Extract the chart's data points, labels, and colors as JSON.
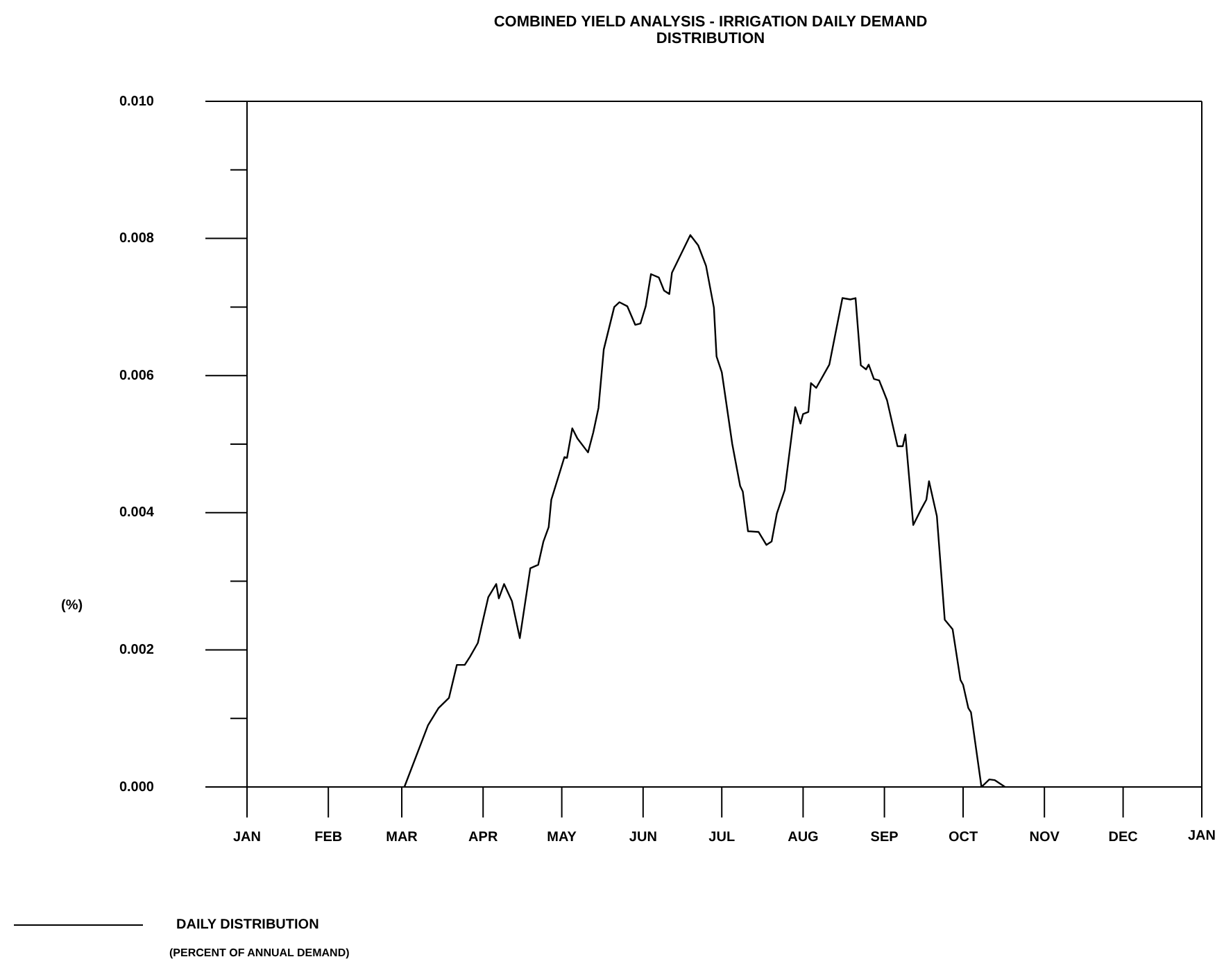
{
  "chart_data": {
    "type": "line",
    "title": "COMBINED YIELD ANALYSIS - IRRIGATION DAILY DEMAND DISTRIBUTION",
    "ylabel": "(%)",
    "annotations": [
      "(PERCENT OF ANNUAL DEMAND)",
      "JAN"
    ],
    "legend": "bottom left",
    "marker": "none",
    "line_style": "solid",
    "xlim": [
      "--01-01",
      "--12-31"
    ],
    "xticks": [
      {
        "value": "--01-01",
        "label": "JAN"
      },
      {
        "value": "--02-01",
        "label": "FEB"
      },
      {
        "value": "--03-01",
        "label": "MAR"
      },
      {
        "value": "--04-01",
        "label": "APR"
      },
      {
        "value": "--05-01",
        "label": "MAY"
      },
      {
        "value": "--06-01",
        "label": "JUN"
      },
      {
        "value": "--07-01",
        "label": "JUL"
      },
      {
        "value": "--08-01",
        "label": "AUG"
      },
      {
        "value": "--09-01",
        "label": "SEP"
      },
      {
        "value": "--10-01",
        "label": "OCT"
      },
      {
        "value": "--11-01",
        "label": "NOV"
      },
      {
        "value": "--12-01",
        "label": "DEC"
      }
    ],
    "ylim": [
      0,
      0.01
    ],
    "yticks": [
      {
        "value": 0,
        "label": "0.000"
      },
      {
        "value": 0.001,
        "label": null
      },
      {
        "value": 0.002,
        "label": "0.002"
      },
      {
        "value": 0.003,
        "label": null
      },
      {
        "value": 0.004,
        "label": "0.004"
      },
      {
        "value": 0.005,
        "label": null
      },
      {
        "value": 0.006,
        "label": "0.006"
      },
      {
        "value": 0.007,
        "label": null
      },
      {
        "value": 0.008,
        "label": "0.008"
      },
      {
        "value": 0.009,
        "label": null
      },
      {
        "value": 0.01,
        "label": "0.010"
      }
    ],
    "series": [
      {
        "name": "DAILY DISTRIBUTION",
        "color": "#000000",
        "x": [
          "--03-02",
          "--03-11",
          "--03-15",
          "--03-19",
          "--03-22",
          "--03-25",
          "--03-27",
          "--03-30",
          "--04-01",
          "--04-03",
          "--04-06",
          "--04-07",
          "--04-09",
          "--04-12",
          "--04-15",
          "--04-19",
          "--04-22",
          "--04-24",
          "--04-26",
          "--04-27",
          "--04-30",
          "--05-02",
          "--05-03",
          "--05-05",
          "--05-07",
          "--05-11",
          "--05-13",
          "--05-15",
          "--05-17",
          "--05-21",
          "--05-23",
          "--05-26",
          "--05-29",
          "--05-31",
          "--06-02",
          "--06-04",
          "--06-07",
          "--06-09",
          "--06-11",
          "--06-12",
          "--06-19",
          "--06-22",
          "--06-25",
          "--06-28",
          "--06-29",
          "--07-01",
          "--07-05",
          "--07-08",
          "--07-09",
          "--07-11",
          "--07-15",
          "--07-18",
          "--07-20",
          "--07-22",
          "--07-25",
          "--07-29",
          "--07-31",
          "--08-01",
          "--08-03",
          "--08-04",
          "--08-06",
          "--08-11",
          "--08-16",
          "--08-19",
          "--08-21",
          "--08-23",
          "--08-25",
          "--08-26",
          "--08-28",
          "--08-30",
          "--09-02",
          "--09-06",
          "--09-08",
          "--09-09",
          "--09-12",
          "--09-15",
          "--09-17",
          "--09-18",
          "--09-21",
          "--09-24",
          "--09-27",
          "--09-30",
          "--10-01",
          "--10-03",
          "--10-04",
          "--10-08",
          "--10-11",
          "--10-13",
          "--10-17"
        ],
        "values": [
          0,
          0.0009,
          0.00115,
          0.0013,
          0.00178,
          0.00178,
          0.0019,
          0.0021,
          0.00244,
          0.00277,
          0.00296,
          0.00275,
          0.00296,
          0.00271,
          0.00217,
          0.00319,
          0.00324,
          0.00358,
          0.00379,
          0.00419,
          0.00456,
          0.00481,
          0.0048,
          0.00523,
          0.00508,
          0.00488,
          0.00517,
          0.00553,
          0.00638,
          0.007,
          0.00707,
          0.00701,
          0.00674,
          0.00676,
          0.00701,
          0.00748,
          0.00743,
          0.00724,
          0.00719,
          0.0075,
          0.00805,
          0.0079,
          0.0076,
          0.00699,
          0.00628,
          0.00605,
          0.005,
          0.00439,
          0.00431,
          0.00373,
          0.00372,
          0.00353,
          0.00358,
          0.00399,
          0.00433,
          0.00554,
          0.0053,
          0.00544,
          0.00547,
          0.00589,
          0.00582,
          0.00616,
          0.00713,
          0.00711,
          0.00713,
          0.00615,
          0.00609,
          0.00616,
          0.00595,
          0.00593,
          0.00564,
          0.00497,
          0.00497,
          0.00514,
          0.00382,
          0.00405,
          0.00419,
          0.00446,
          0.00395,
          0.00244,
          0.0023,
          0.00156,
          0.00149,
          0.00115,
          0.00109,
          0,
          0.00011,
          0.0001,
          0
        ]
      }
    ]
  }
}
